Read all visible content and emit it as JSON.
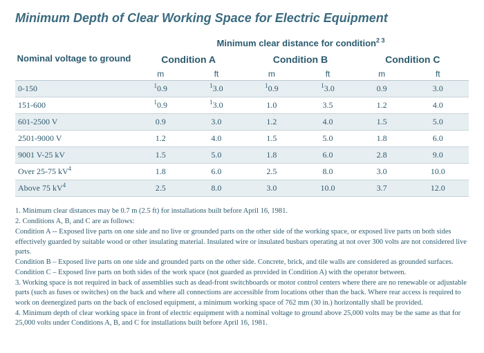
{
  "title": "Minimum Depth of Clear Working Space for Electric Equipment",
  "header": {
    "nominal": "Nominal voltage to ground",
    "mainSpan": "Minimum clear distance for condition",
    "mainSpanSup": "2 3",
    "condA": "Condition A",
    "condB": "Condition B",
    "condC": "Condition C",
    "m": "m",
    "ft": "ft"
  },
  "rows": [
    {
      "label": "0-150",
      "am": "0.9",
      "amSup": "1",
      "aft": "3.0",
      "aftSup": "1",
      "bm": "0.9",
      "bmSup": "1",
      "bft": "3.0",
      "bftSup": "1",
      "cm": "0.9",
      "cft": "3.0",
      "band": true
    },
    {
      "label": "151-600",
      "am": "0.9",
      "amSup": "1",
      "aft": "3.0",
      "aftSup": "1",
      "bm": "1.0",
      "bft": "3.5",
      "cm": "1.2",
      "cft": "4.0",
      "band": false
    },
    {
      "label": "601-2500 V",
      "am": "0.9",
      "aft": "3.0",
      "bm": "1.2",
      "bft": "4.0",
      "cm": "1.5",
      "cft": "5.0",
      "band": true
    },
    {
      "label": "2501-9000 V",
      "am": "1.2",
      "aft": "4.0",
      "bm": "1.5",
      "bft": "5.0",
      "cm": "1.8",
      "cft": "6.0",
      "band": false
    },
    {
      "label": "9001 V-25 kV",
      "am": "1.5",
      "aft": "5.0",
      "bm": "1.8",
      "bft": "6.0",
      "cm": "2.8",
      "cft": "9.0",
      "band": true
    },
    {
      "label": "Over 25-75 kV",
      "labelSup": "4",
      "am": "1.8",
      "aft": "6.0",
      "bm": "2.5",
      "bft": "8.0",
      "cm": "3.0",
      "cft": "10.0",
      "band": false
    },
    {
      "label": "Above 75 kV",
      "labelSup": "4",
      "am": "2.5",
      "aft": "8.0",
      "bm": "3.0",
      "bft": "10.0",
      "cm": "3.7",
      "cft": "12.0",
      "band": true
    }
  ],
  "footnotes": [
    "1. Minimum clear distances may be 0.7 m (2.5 ft) for installations built before April 16, 1981.",
    "2. Conditions A, B, and C are as follows:",
    "Condition A -- Exposed live parts on one side and no live or grounded parts on the other side of the working space, or exposed live parts on both sides effectively guarded by suitable wood or other insulating material. Insulated wire or insulated busbars operating at not over 300 volts are not considered live parts.",
    "Condition B – Exposed live parts on one side and grounded parts on the other side. Concrete, brick, and tile walls are considered as grounded surfaces.",
    "Condition C – Exposed live parts on both sides of the work space (not guarded as provided in Condition A) with the operator between.",
    "3. Working space is not required in back of assemblies such as dead-front switchboards or motor control centers where there are no renewable or adjustable parts (such as fuses or switches) on the back and where all connections are accessible from locations other than the back. Where rear access is required to work on deenergized parts on the back of enclosed equipment, a minimum working space of 762 mm (30 in.) horizontally shall be provided.",
    "4. Minimum depth of clear working space in front of electric equipment with a nominal voltage to ground above 25,000 volts may be the same as that for 25,000 volts under Conditions A, B, and C for installations built before April 16, 1981."
  ]
}
